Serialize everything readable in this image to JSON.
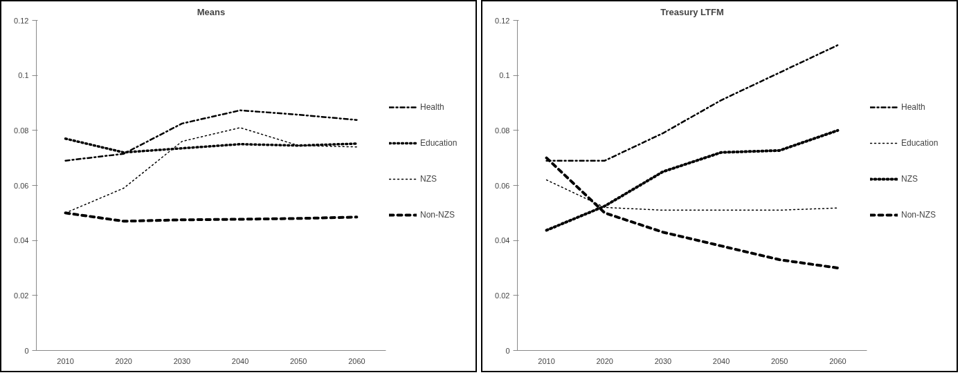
{
  "chart_data": [
    {
      "type": "line",
      "title": "Means",
      "categories": [
        "2010",
        "2020",
        "2030",
        "2040",
        "2050",
        "2060"
      ],
      "ylim": [
        0,
        0.12
      ],
      "yticks": [
        0,
        0.02,
        0.04,
        0.06,
        0.08,
        {
          "value": 0.1,
          "label": "0.1"
        },
        0.12
      ],
      "grid": false,
      "legend": "right",
      "series": [
        {
          "name": "Health",
          "color": "#000000",
          "line_style": "dashdot",
          "values": [
            0.069,
            0.0715,
            0.0825,
            0.0873,
            0.0857,
            0.0838
          ]
        },
        {
          "name": "Education",
          "color": "#000000",
          "line_style": "dotted",
          "values": [
            0.077,
            0.072,
            0.0735,
            0.075,
            0.0745,
            0.0752
          ]
        },
        {
          "name": "NZS",
          "color": "#000000",
          "line_style": "dotted",
          "values": [
            0.05,
            0.059,
            0.076,
            0.081,
            0.0745,
            0.074
          ]
        },
        {
          "name": "Non-NZS",
          "color": "#000000",
          "line_style": "dashed",
          "values": [
            0.05,
            0.047,
            0.0475,
            0.0477,
            0.048,
            0.0485
          ]
        }
      ]
    },
    {
      "type": "line",
      "title": "Treasury LTFM",
      "categories": [
        "2010",
        "2020",
        "2030",
        "2040",
        "2050",
        "2060"
      ],
      "ylim": [
        0,
        0.12
      ],
      "yticks": [
        0,
        0.02,
        0.04,
        0.06,
        0.08,
        {
          "value": 0.1,
          "label": "0.1"
        },
        0.12
      ],
      "grid": false,
      "legend": "right",
      "series": [
        {
          "name": "Health",
          "color": "#000000",
          "line_style": "dashdot",
          "values": [
            0.069,
            0.069,
            0.079,
            0.091,
            0.101,
            0.111
          ]
        },
        {
          "name": "Education",
          "color": "#000000",
          "line_style": "dotted",
          "values": [
            0.062,
            0.052,
            0.051,
            0.051,
            0.051,
            0.0518
          ]
        },
        {
          "name": "NZS",
          "color": "#000000",
          "line_style": "dotted",
          "values": [
            0.0437,
            0.0525,
            0.065,
            0.072,
            0.0727,
            0.08
          ]
        },
        {
          "name": "Non-NZS",
          "color": "#000000",
          "line_style": "dashed",
          "values": [
            0.07,
            0.05,
            0.043,
            0.038,
            0.033,
            0.03
          ]
        }
      ]
    }
  ]
}
